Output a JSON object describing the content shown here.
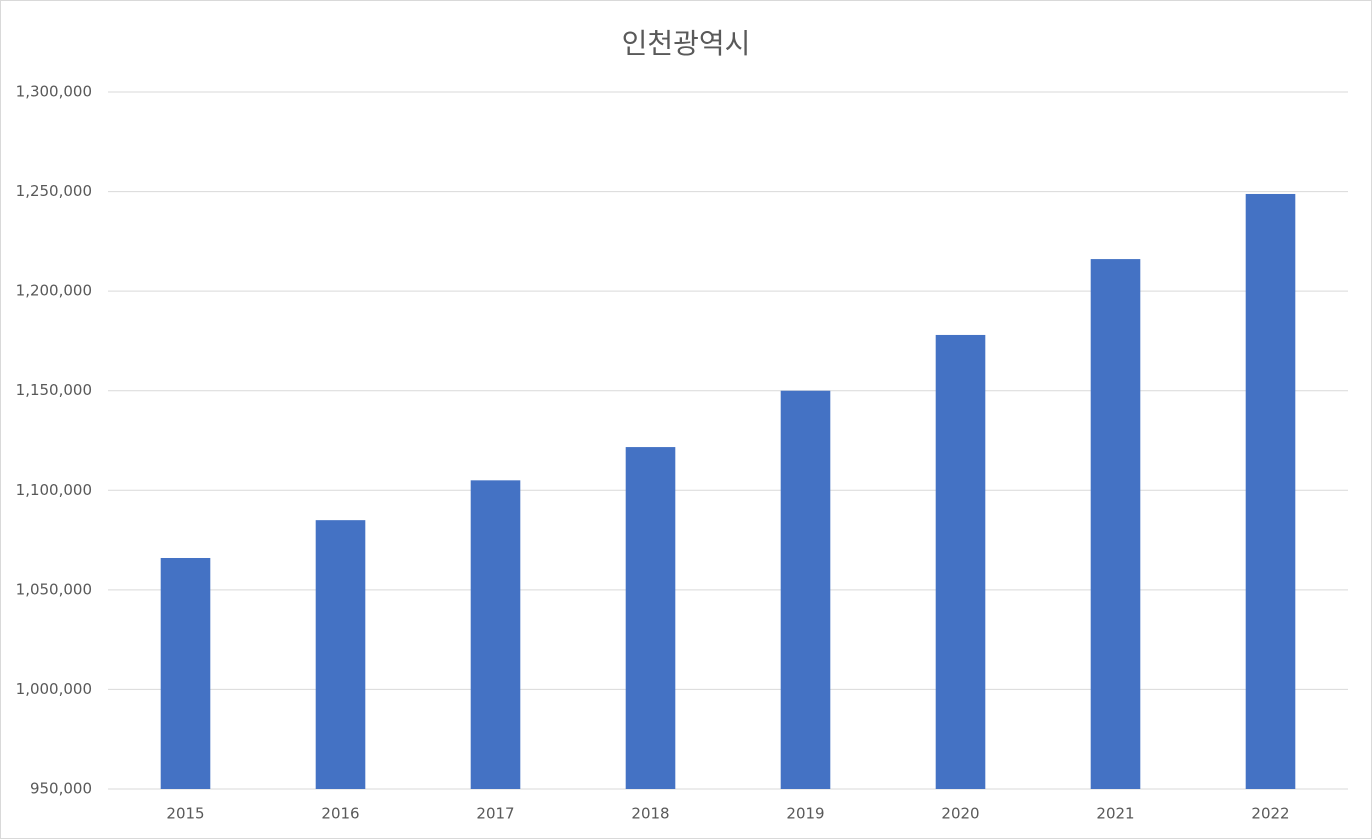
{
  "chart_data": {
    "type": "bar",
    "title": "인천광역시",
    "categories": [
      "2015",
      "2016",
      "2017",
      "2018",
      "2019",
      "2020",
      "2021",
      "2022"
    ],
    "values": [
      1066000,
      1085000,
      1105000,
      1121700,
      1150000,
      1178000,
      1216100,
      1248800
    ],
    "color": "#4472c4",
    "ylim": [
      950000,
      1300000
    ],
    "yticks": [
      {
        "value": 950000,
        "label": "950,000"
      },
      {
        "value": 1000000,
        "label": "1,000,000"
      },
      {
        "value": 1050000,
        "label": "1,050,000"
      },
      {
        "value": 1100000,
        "label": "1,100,000"
      },
      {
        "value": 1150000,
        "label": "1,150,000"
      },
      {
        "value": 1200000,
        "label": "1,200,000"
      },
      {
        "value": 1250000,
        "label": "1,250,000"
      },
      {
        "value": 1300000,
        "label": "1,300,000"
      }
    ],
    "grid": true
  }
}
